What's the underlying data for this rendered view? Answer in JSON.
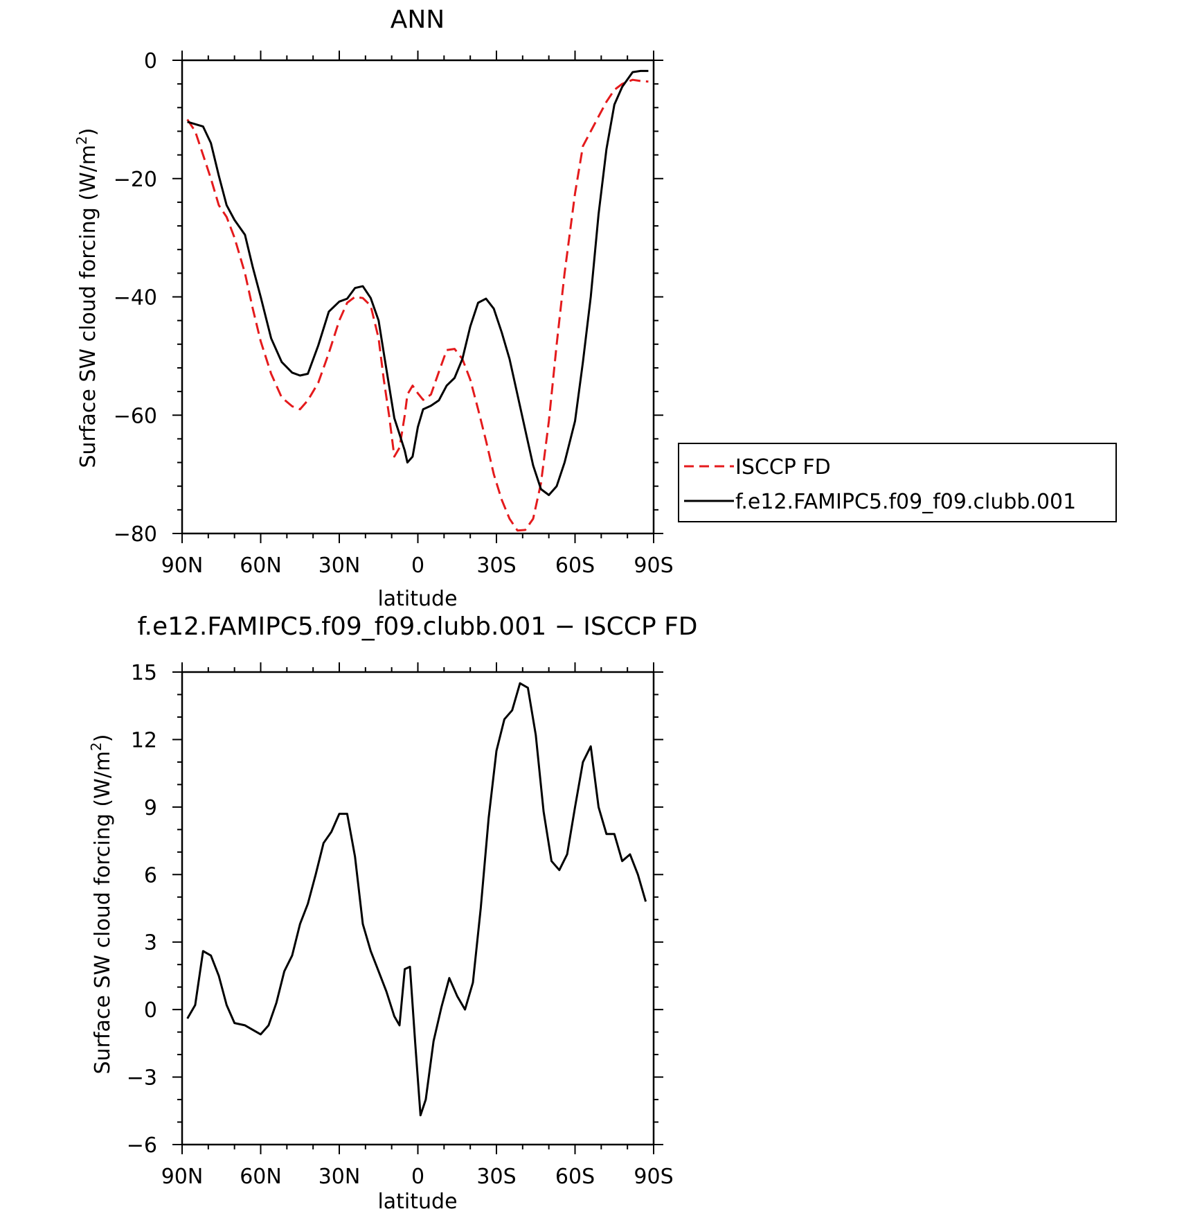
{
  "chart_data": [
    {
      "type": "line",
      "title": "ANN",
      "xlabel": "latitude",
      "ylabel_main": "Surface SW cloud forcing (W/m",
      "ylabel_sup": "2",
      "ylabel_close": ")",
      "xlim": [
        90,
        -90
      ],
      "ylim": [
        -80,
        0
      ],
      "xtick_values": [
        90,
        60,
        30,
        0,
        -30,
        -60,
        -90
      ],
      "xtick_labels": [
        "90N",
        "60N",
        "30N",
        "0",
        "30S",
        "60S",
        "90S"
      ],
      "ytick_values": [
        -80,
        -60,
        -40,
        -20,
        0
      ],
      "ytick_labels": [
        "−80",
        "−60",
        "−40",
        "−20",
        "0"
      ],
      "legend_position": "right",
      "series": [
        {
          "name": "ISCCP FD",
          "color": "#e41a1c",
          "dash": "dashed",
          "x": [
            88,
            85,
            82,
            79,
            76,
            73,
            70,
            66,
            63,
            60,
            56,
            52,
            48,
            45,
            42,
            38,
            34,
            30,
            27,
            24,
            21,
            18,
            15,
            13,
            11,
            9,
            7,
            5,
            4,
            2,
            0,
            -2,
            -5,
            -8,
            -11,
            -14,
            -17,
            -20,
            -23,
            -26,
            -29,
            -32,
            -35,
            -38,
            -41,
            -44,
            -47,
            -50,
            -53,
            -56,
            -60,
            -63,
            -66,
            -69,
            -72,
            -75,
            -78,
            -82,
            -85,
            -88
          ],
          "y": [
            -10,
            -12,
            -16,
            -20,
            -24.5,
            -26.5,
            -30,
            -36,
            -42,
            -47.5,
            -53,
            -57,
            -58.5,
            -59,
            -57.5,
            -54.5,
            -49.5,
            -44,
            -41,
            -40,
            -40.2,
            -41.5,
            -47,
            -54,
            -60,
            -67,
            -65.5,
            -60,
            -56.5,
            -55,
            -56.3,
            -57.4,
            -56.5,
            -52.7,
            -49,
            -48.8,
            -50.5,
            -54,
            -59,
            -64.3,
            -70,
            -74.3,
            -77.5,
            -79.5,
            -79.4,
            -77.5,
            -71.5,
            -61,
            -48,
            -36,
            -22.5,
            -14.5,
            -12,
            -9.5,
            -7,
            -5,
            -4,
            -3.3,
            -3.5,
            -3.6
          ]
        },
        {
          "name": "f.e12.FAMIPC5.f09_f09.clubb.001",
          "color": "#000000",
          "dash": "solid",
          "x": [
            88,
            85,
            82,
            79,
            76,
            73,
            70,
            66,
            63,
            60,
            56,
            52,
            48,
            45,
            42,
            38,
            34,
            30,
            27,
            24,
            21,
            18,
            15,
            13,
            11,
            9,
            7,
            5,
            4,
            2,
            0,
            -2,
            -5,
            -8,
            -11,
            -14,
            -17,
            -20,
            -23,
            -26,
            -29,
            -32,
            -35,
            -38,
            -41,
            -44,
            -47,
            -50,
            -53,
            -56,
            -60,
            -63,
            -66,
            -69,
            -72,
            -75,
            -78,
            -82,
            -85,
            -88
          ],
          "y": [
            -10.4,
            -10.8,
            -11.2,
            -14,
            -19.5,
            -24.5,
            -27,
            -29.5,
            -35,
            -40,
            -47,
            -51,
            -52.8,
            -53.3,
            -53,
            -48.2,
            -42.5,
            -40.8,
            -40.3,
            -38.5,
            -38.2,
            -40.2,
            -44,
            -49.5,
            -55,
            -60.5,
            -63.2,
            -66,
            -68,
            -67,
            -62,
            -59,
            -58.4,
            -57.5,
            -55,
            -53.7,
            -50.5,
            -45,
            -41,
            -40.3,
            -42,
            -46,
            -50.5,
            -56.5,
            -62.5,
            -68.5,
            -72.5,
            -73.5,
            -72,
            -68,
            -61,
            -51,
            -40,
            -26,
            -15,
            -7.5,
            -4.5,
            -2,
            -1.8,
            -1.8
          ]
        }
      ]
    },
    {
      "type": "line",
      "title": "f.e12.FAMIPC5.f09_f09.clubb.001 − ISCCP FD",
      "xlabel": "latitude",
      "ylabel_main": "Surface SW cloud forcing (W/m",
      "ylabel_sup": "2",
      "ylabel_close": ")",
      "xlim": [
        90,
        -90
      ],
      "ylim": [
        -6,
        15
      ],
      "xtick_values": [
        90,
        60,
        30,
        0,
        -30,
        -60,
        -90
      ],
      "xtick_labels": [
        "90N",
        "60N",
        "30N",
        "0",
        "30S",
        "60S",
        "90S"
      ],
      "ytick_values": [
        -6,
        -3,
        0,
        3,
        6,
        9,
        12,
        15
      ],
      "ytick_labels": [
        "−6",
        "−3",
        "0",
        "3",
        "6",
        "9",
        "12",
        "15"
      ],
      "series": [
        {
          "color": "#000000",
          "dash": "solid",
          "x": [
            88,
            85,
            82,
            79,
            76,
            73,
            70,
            66,
            63,
            60,
            57,
            54,
            51,
            48,
            45,
            42,
            39,
            36,
            33,
            30,
            27,
            24,
            21,
            18,
            15,
            12,
            9,
            7,
            5,
            3,
            1,
            -1,
            -3,
            -6,
            -9,
            -12,
            -15,
            -18,
            -21,
            -24,
            -27,
            -30,
            -33,
            -36,
            -39,
            -42,
            -45,
            -48,
            -51,
            -54,
            -57,
            -60,
            -63,
            -66,
            -69,
            -72,
            -75,
            -78,
            -81,
            -84,
            -87
          ],
          "y": [
            -0.4,
            0.2,
            2.6,
            2.4,
            1.5,
            0.2,
            -0.6,
            -0.7,
            -0.9,
            -1.1,
            -0.7,
            0.3,
            1.7,
            2.4,
            3.8,
            4.7,
            6.0,
            7.4,
            7.9,
            8.7,
            8.7,
            6.8,
            3.8,
            2.6,
            1.7,
            0.8,
            -0.3,
            -0.7,
            1.8,
            1.9,
            -1.5,
            -4.7,
            -4.0,
            -1.4,
            0.1,
            1.4,
            0.6,
            0.0,
            1.2,
            4.5,
            8.5,
            11.5,
            12.9,
            13.3,
            14.5,
            14.3,
            12.2,
            8.8,
            6.6,
            6.2,
            6.9,
            9.0,
            11.0,
            11.7,
            9.0,
            7.8,
            7.8,
            6.6,
            6.9,
            6.0,
            4.8
          ]
        }
      ]
    }
  ]
}
